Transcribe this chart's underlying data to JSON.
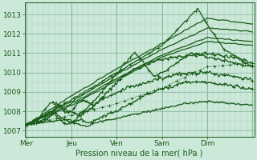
{
  "bg_color": "#cce8d8",
  "grid_color_minor": "#aacfbe",
  "grid_color_major": "#88b8a0",
  "line_color": "#1a5c1a",
  "ylabel_text": "Pression niveau de la mer( hPa )",
  "xtick_labels": [
    "Mer",
    "Jeu",
    "Ven",
    "Sam",
    "Dim"
  ],
  "xtick_positions": [
    0,
    48,
    96,
    144,
    192
  ],
  "ylim": [
    1006.7,
    1013.6
  ],
  "yticks": [
    1007,
    1008,
    1009,
    1010,
    1011,
    1012,
    1013
  ],
  "total_hours": 240,
  "day_ticks": [
    0,
    48,
    96,
    144,
    192,
    240
  ]
}
